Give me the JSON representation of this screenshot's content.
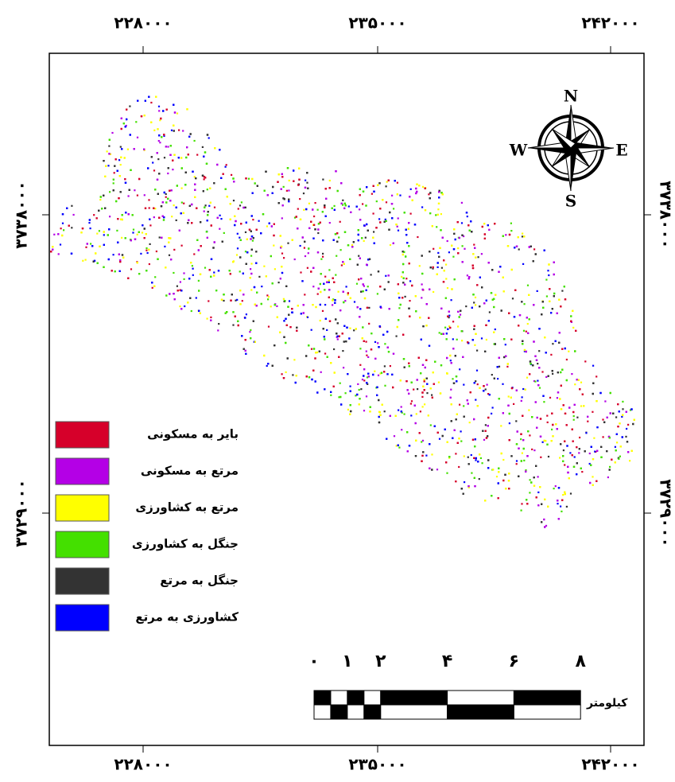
{
  "map": {
    "top_labels": [
      "۲۲۸۰۰۰",
      "۲۳۵۰۰۰",
      "۲۴۲۰۰۰"
    ],
    "bottom_labels": [
      "۲۲۸۰۰۰",
      "۲۳۵۰۰۰",
      "۲۴۲۰۰۰"
    ],
    "left_labels": [
      "۳۷۳۸۰۰۰",
      "۳۷۲۹۰۰۰"
    ],
    "right_labels": [
      "۳۷۳۸۰۰۰",
      "۳۷۲۹۰۰۰"
    ],
    "compass": {
      "n": "N",
      "e": "E",
      "s": "S",
      "w": "W"
    },
    "legend": [
      {
        "label": "بایر به مسکونی",
        "color": "#d6002a"
      },
      {
        "label": "مرتع به مسکونی",
        "color": "#b400e6"
      },
      {
        "label": "مرتع به کشاورزی",
        "color": "#ffff00"
      },
      {
        "label": "جنگل به کشاورزی",
        "color": "#44e000"
      },
      {
        "label": "جنگل به مرتع",
        "color": "#333333"
      },
      {
        "label": "کشاورزی به مرتع",
        "color": "#0000ff"
      }
    ],
    "scale": {
      "labels": [
        "۰",
        "۱",
        "۲",
        "۴",
        "۶",
        "۸"
      ],
      "unit": "کیلومتر"
    }
  }
}
